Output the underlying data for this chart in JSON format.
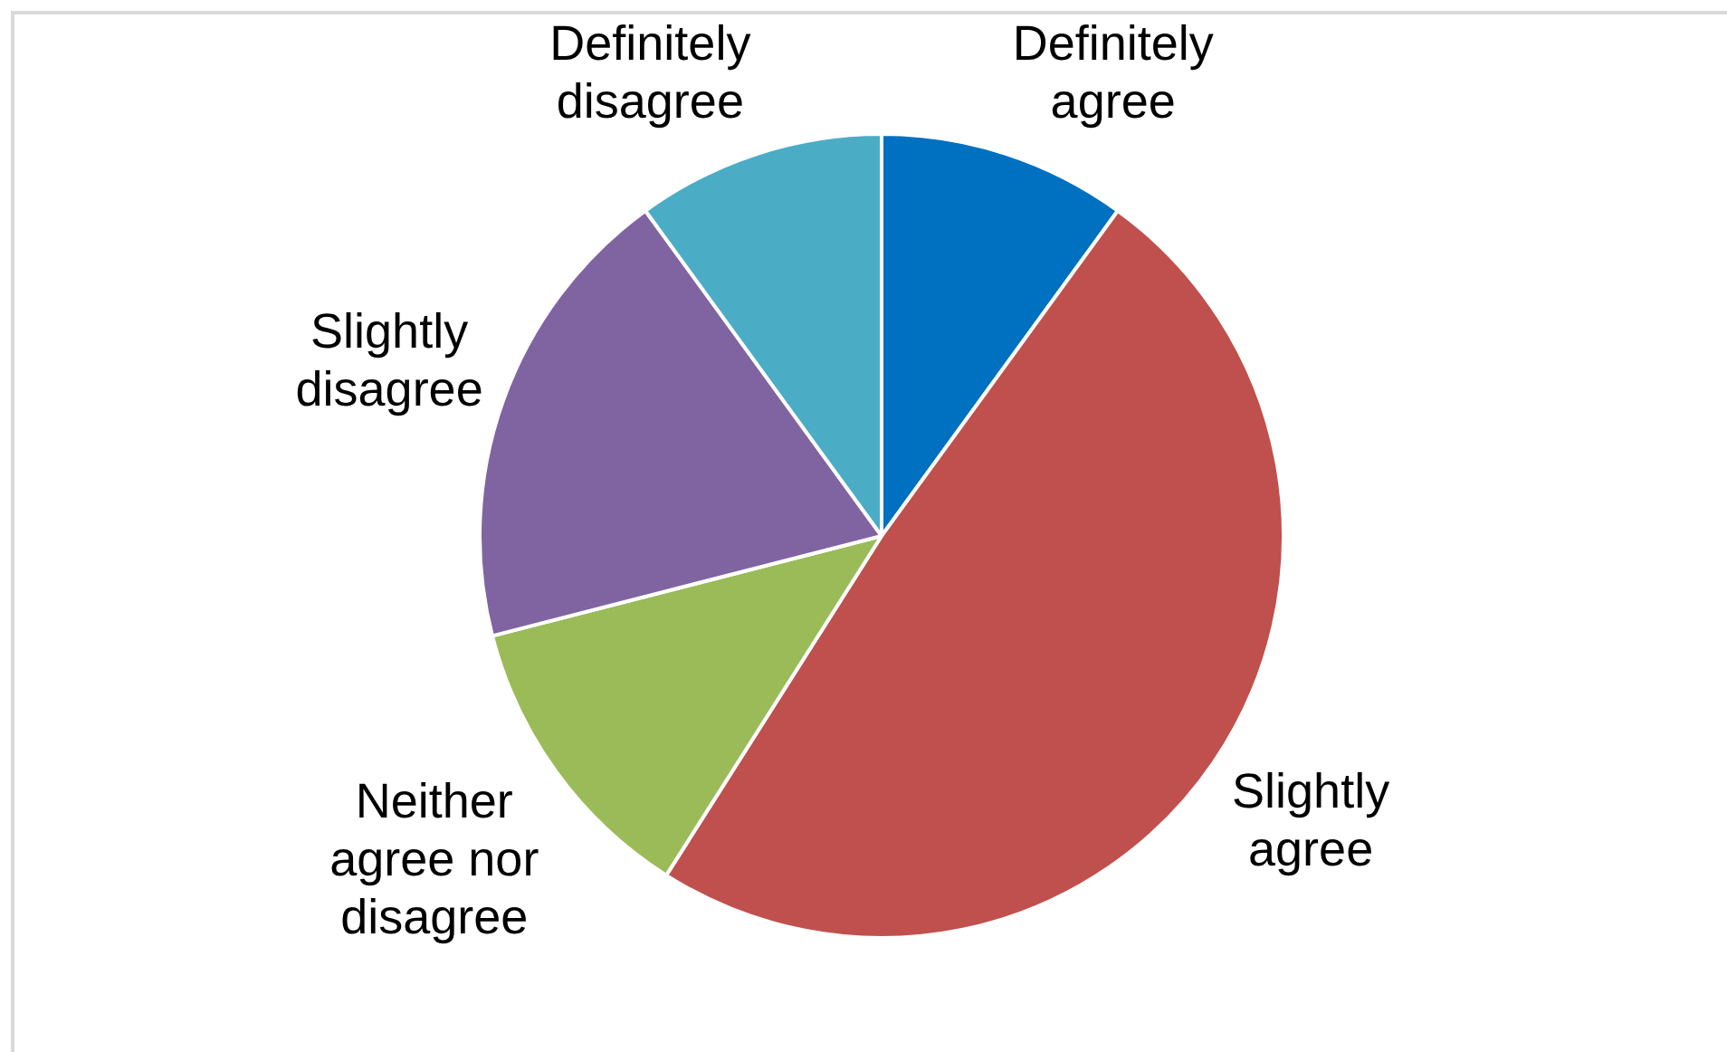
{
  "chart_data": {
    "type": "pie",
    "categories": [
      "Definitely agree",
      "Slightly agree",
      "Neither agree nor disagree",
      "Slightly disagree",
      "Definitely disagree"
    ],
    "values": [
      10,
      49,
      12,
      19,
      10
    ],
    "colors": [
      "#0070c0",
      "#c0504d",
      "#9bbb59",
      "#8064a2",
      "#4bacc6"
    ]
  }
}
